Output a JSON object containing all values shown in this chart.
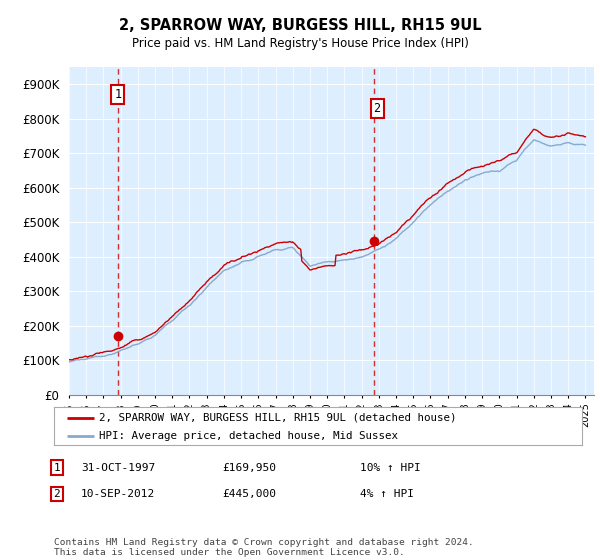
{
  "title1": "2, SPARROW WAY, BURGESS HILL, RH15 9UL",
  "title2": "Price paid vs. HM Land Registry's House Price Index (HPI)",
  "ylabel_ticks": [
    "£0",
    "£100K",
    "£200K",
    "£300K",
    "£400K",
    "£500K",
    "£600K",
    "£700K",
    "£800K",
    "£900K"
  ],
  "ytick_vals": [
    0,
    100000,
    200000,
    300000,
    400000,
    500000,
    600000,
    700000,
    800000,
    900000
  ],
  "ylim": [
    0,
    950000
  ],
  "sale1_date": 1997.83,
  "sale1_price": 169950,
  "sale1_label": "1",
  "sale2_date": 2012.7,
  "sale2_price": 445000,
  "sale2_label": "2",
  "legend_line1": "2, SPARROW WAY, BURGESS HILL, RH15 9UL (detached house)",
  "legend_line2": "HPI: Average price, detached house, Mid Sussex",
  "table_row1": [
    "1",
    "31-OCT-1997",
    "£169,950",
    "10% ↑ HPI"
  ],
  "table_row2": [
    "2",
    "10-SEP-2012",
    "£445,000",
    "4% ↑ HPI"
  ],
  "footnote": "Contains HM Land Registry data © Crown copyright and database right 2024.\nThis data is licensed under the Open Government Licence v3.0.",
  "line_color_red": "#cc0000",
  "line_color_blue": "#88aacc",
  "bg_color": "#ffffff",
  "chart_bg_color": "#ddeeff",
  "grid_color": "#ffffff",
  "vline_color": "#cc0000"
}
